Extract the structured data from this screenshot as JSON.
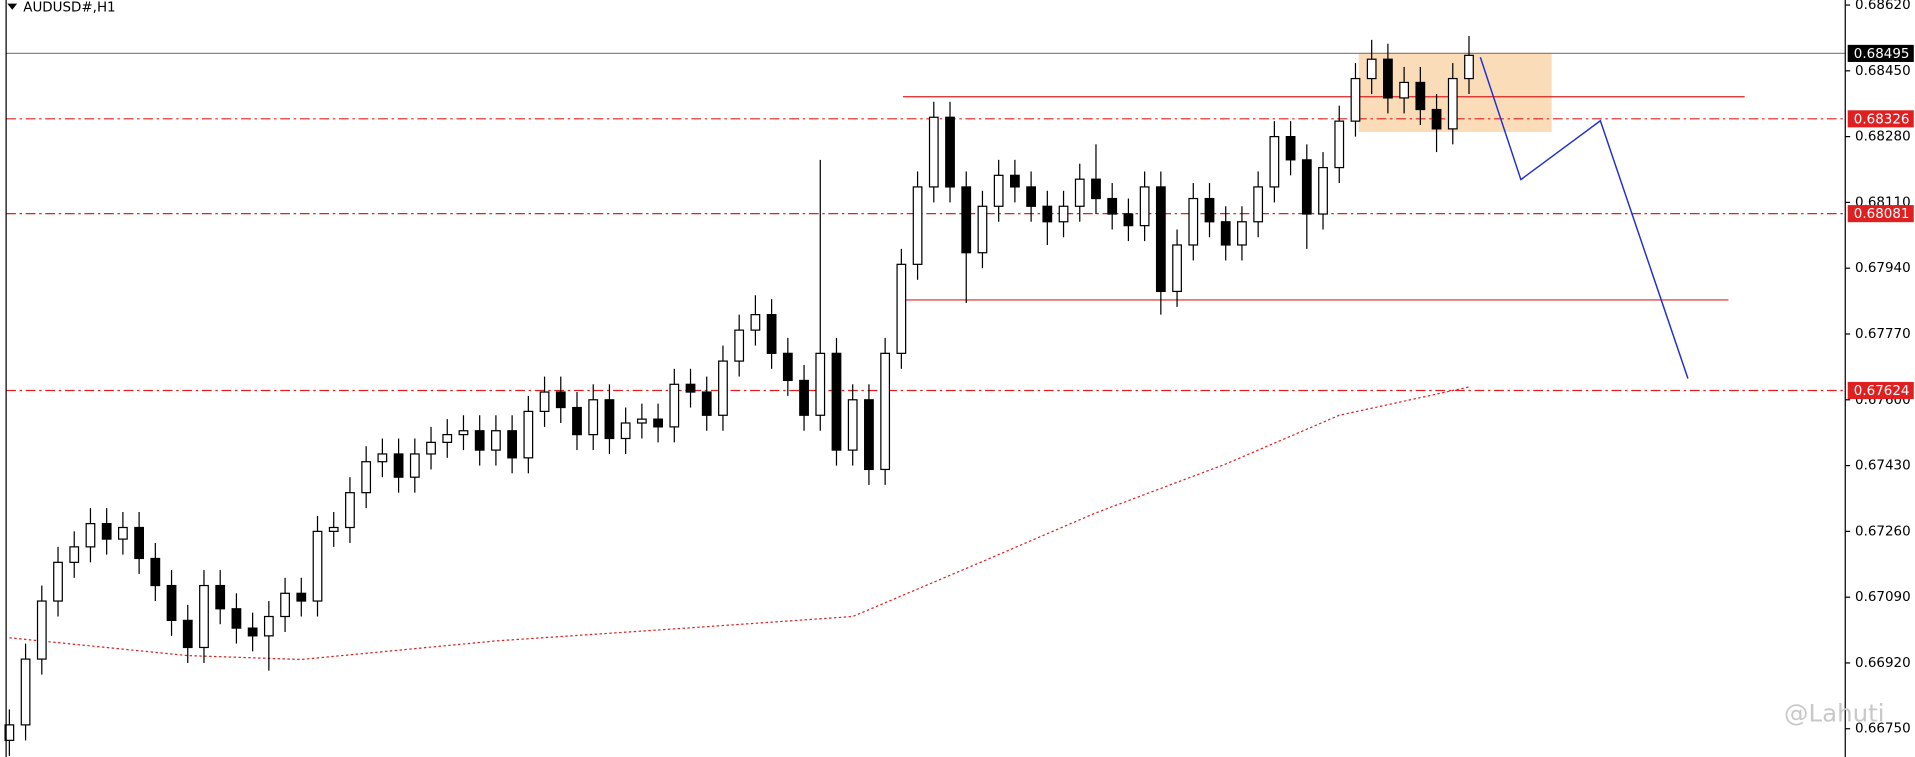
{
  "chart_data": {
    "type": "candlestick",
    "title": "AUDUSD#,H1",
    "watermark": "@Lahuti",
    "up_color": "#ffffff",
    "down_color": "#000000",
    "xlim": [
      -0.2,
      113.2
    ],
    "ylim": [
      0.66677,
      0.68633
    ],
    "yticks": [
      {
        "value": 0.6862,
        "label": "0.68620"
      },
      {
        "value": 0.6845,
        "label": "0.68450"
      },
      {
        "value": 0.6828,
        "label": "0.68280"
      },
      {
        "value": 0.6811,
        "label": "0.68110"
      },
      {
        "value": 0.6794,
        "label": "0.67940"
      },
      {
        "value": 0.6777,
        "label": "0.67770"
      },
      {
        "value": 0.676,
        "label": "0.67600"
      },
      {
        "value": 0.6743,
        "label": "0.67430"
      },
      {
        "value": 0.6726,
        "label": "0.67260"
      },
      {
        "value": 0.6709,
        "label": "0.67090"
      },
      {
        "value": 0.6692,
        "label": "0.66920"
      },
      {
        "value": 0.6675,
        "label": "0.66750"
      }
    ],
    "current_price": 0.68495,
    "current_color": "#888888",
    "levels": [
      0.68326,
      0.68081,
      0.67624
    ],
    "level_color": "#e02020",
    "ohlc": [
      [
        0.6672,
        0.668,
        0.6668,
        0.6676
      ],
      [
        0.6676,
        0.6697,
        0.6672,
        0.6693
      ],
      [
        0.6693,
        0.6712,
        0.6689,
        0.6708
      ],
      [
        0.6708,
        0.6722,
        0.6704,
        0.6718
      ],
      [
        0.6718,
        0.6726,
        0.6714,
        0.6722
      ],
      [
        0.6722,
        0.6732,
        0.6718,
        0.6728
      ],
      [
        0.6728,
        0.6732,
        0.672,
        0.6724
      ],
      [
        0.6724,
        0.6731,
        0.672,
        0.6727
      ],
      [
        0.6727,
        0.6731,
        0.6715,
        0.6719
      ],
      [
        0.6719,
        0.6723,
        0.6708,
        0.6712
      ],
      [
        0.6712,
        0.6716,
        0.6699,
        0.6703
      ],
      [
        0.6703,
        0.6707,
        0.6692,
        0.6696
      ],
      [
        0.6696,
        0.6716,
        0.6692,
        0.6712
      ],
      [
        0.6712,
        0.6716,
        0.6702,
        0.6706
      ],
      [
        0.6706,
        0.671,
        0.6697,
        0.6701
      ],
      [
        0.6701,
        0.6705,
        0.6695,
        0.6699
      ],
      [
        0.6699,
        0.6708,
        0.669,
        0.6704
      ],
      [
        0.6704,
        0.6714,
        0.67,
        0.671
      ],
      [
        0.671,
        0.6714,
        0.6704,
        0.6708
      ],
      [
        0.6708,
        0.673,
        0.6704,
        0.6726
      ],
      [
        0.6726,
        0.6731,
        0.6722,
        0.6727
      ],
      [
        0.6727,
        0.674,
        0.6723,
        0.6736
      ],
      [
        0.6736,
        0.6748,
        0.6732,
        0.6744
      ],
      [
        0.6744,
        0.675,
        0.674,
        0.6746
      ],
      [
        0.6746,
        0.675,
        0.6736,
        0.674
      ],
      [
        0.674,
        0.675,
        0.6736,
        0.6746
      ],
      [
        0.6746,
        0.6753,
        0.6742,
        0.6749
      ],
      [
        0.6749,
        0.6755,
        0.6745,
        0.6751
      ],
      [
        0.6751,
        0.6756,
        0.6747,
        0.6752
      ],
      [
        0.6752,
        0.6756,
        0.6743,
        0.6747
      ],
      [
        0.6747,
        0.6756,
        0.6743,
        0.6752
      ],
      [
        0.6752,
        0.6756,
        0.6741,
        0.6745
      ],
      [
        0.6745,
        0.6761,
        0.6741,
        0.6757
      ],
      [
        0.6757,
        0.6766,
        0.6753,
        0.6762
      ],
      [
        0.6762,
        0.6766,
        0.6754,
        0.6758
      ],
      [
        0.6758,
        0.6762,
        0.6747,
        0.6751
      ],
      [
        0.6751,
        0.6764,
        0.6747,
        0.676
      ],
      [
        0.676,
        0.6764,
        0.6746,
        0.675
      ],
      [
        0.675,
        0.6758,
        0.6746,
        0.6754
      ],
      [
        0.6754,
        0.6759,
        0.675,
        0.6755
      ],
      [
        0.6755,
        0.6759,
        0.6749,
        0.6753
      ],
      [
        0.6753,
        0.6768,
        0.6749,
        0.6764
      ],
      [
        0.6764,
        0.6768,
        0.6758,
        0.6762
      ],
      [
        0.6762,
        0.6766,
        0.6752,
        0.6756
      ],
      [
        0.6756,
        0.6774,
        0.6752,
        0.677
      ],
      [
        0.677,
        0.6782,
        0.6766,
        0.6778
      ],
      [
        0.6778,
        0.6787,
        0.6774,
        0.6782
      ],
      [
        0.6782,
        0.6786,
        0.6768,
        0.6772
      ],
      [
        0.6772,
        0.6776,
        0.6761,
        0.6765
      ],
      [
        0.6765,
        0.6769,
        0.6752,
        0.6756
      ],
      [
        0.6756,
        0.6822,
        0.6752,
        0.6772
      ],
      [
        0.6772,
        0.6776,
        0.6743,
        0.6747
      ],
      [
        0.6747,
        0.6764,
        0.6743,
        0.676
      ],
      [
        0.676,
        0.6764,
        0.6738,
        0.6742
      ],
      [
        0.6742,
        0.6776,
        0.6738,
        0.6772
      ],
      [
        0.6772,
        0.6799,
        0.6768,
        0.6795
      ],
      [
        0.6795,
        0.6819,
        0.6791,
        0.6815
      ],
      [
        0.6815,
        0.6837,
        0.6811,
        0.6833
      ],
      [
        0.6833,
        0.6837,
        0.6811,
        0.6815
      ],
      [
        0.6815,
        0.6819,
        0.6785,
        0.6798
      ],
      [
        0.6798,
        0.6814,
        0.6794,
        0.681
      ],
      [
        0.681,
        0.6822,
        0.6806,
        0.6818
      ],
      [
        0.6818,
        0.6822,
        0.6811,
        0.6815
      ],
      [
        0.6815,
        0.6819,
        0.6806,
        0.681
      ],
      [
        0.681,
        0.6814,
        0.68,
        0.6806
      ],
      [
        0.6806,
        0.6814,
        0.6802,
        0.681
      ],
      [
        0.681,
        0.6821,
        0.6806,
        0.6817
      ],
      [
        0.6817,
        0.6826,
        0.6808,
        0.6812
      ],
      [
        0.6812,
        0.6816,
        0.6804,
        0.6808
      ],
      [
        0.6808,
        0.6812,
        0.6801,
        0.6805
      ],
      [
        0.6805,
        0.6819,
        0.6801,
        0.6815
      ],
      [
        0.6815,
        0.6819,
        0.6782,
        0.6788
      ],
      [
        0.6788,
        0.6804,
        0.6784,
        0.68
      ],
      [
        0.68,
        0.6816,
        0.6796,
        0.6812
      ],
      [
        0.6812,
        0.6816,
        0.6802,
        0.6806
      ],
      [
        0.6806,
        0.681,
        0.6796,
        0.68
      ],
      [
        0.68,
        0.681,
        0.6796,
        0.6806
      ],
      [
        0.6806,
        0.6819,
        0.6802,
        0.6815
      ],
      [
        0.6815,
        0.6832,
        0.6811,
        0.6828
      ],
      [
        0.6828,
        0.6832,
        0.6818,
        0.6822
      ],
      [
        0.6822,
        0.6826,
        0.6799,
        0.6808
      ],
      [
        0.6808,
        0.6824,
        0.6804,
        0.682
      ],
      [
        0.682,
        0.6836,
        0.6816,
        0.6832
      ],
      [
        0.6832,
        0.6847,
        0.6828,
        0.6843
      ],
      [
        0.6843,
        0.6853,
        0.6839,
        0.6848
      ],
      [
        0.6848,
        0.6852,
        0.6834,
        0.6838
      ],
      [
        0.6838,
        0.6846,
        0.6834,
        0.6842
      ],
      [
        0.6842,
        0.6846,
        0.6831,
        0.6835
      ],
      [
        0.6835,
        0.6839,
        0.6824,
        0.683
      ],
      [
        0.683,
        0.6847,
        0.6826,
        0.6843
      ],
      [
        0.6843,
        0.6854,
        0.6839,
        0.6849
      ]
    ],
    "ma": {
      "color": "#e02020",
      "x": [
        0,
        11,
        18,
        30,
        41,
        52,
        60,
        67,
        75,
        82,
        90
      ],
      "values": [
        0.66985,
        0.66939,
        0.66929,
        0.66977,
        0.67008,
        0.6704,
        0.67182,
        0.67308,
        0.67434,
        0.6756,
        0.67633
      ]
    },
    "projection": {
      "color": "#2030d0",
      "x": [
        90.7,
        93.2,
        98.1,
        103.5
      ],
      "values": [
        0.68485,
        0.68169,
        0.68321,
        0.67655
      ]
    },
    "zone": {
      "color": "#f9d6ad",
      "x": [
        83.2,
        95.1
      ],
      "y": [
        0.68292,
        0.68497
      ]
    },
    "lines": [
      {
        "color": "#e02020",
        "x": [
          55.1,
          107
        ],
        "y": [
          0.68383,
          0.68383
        ]
      },
      {
        "color": "#e02020",
        "x": [
          54.7,
          106
        ],
        "y": [
          0.67858,
          0.67858
        ]
      }
    ]
  }
}
